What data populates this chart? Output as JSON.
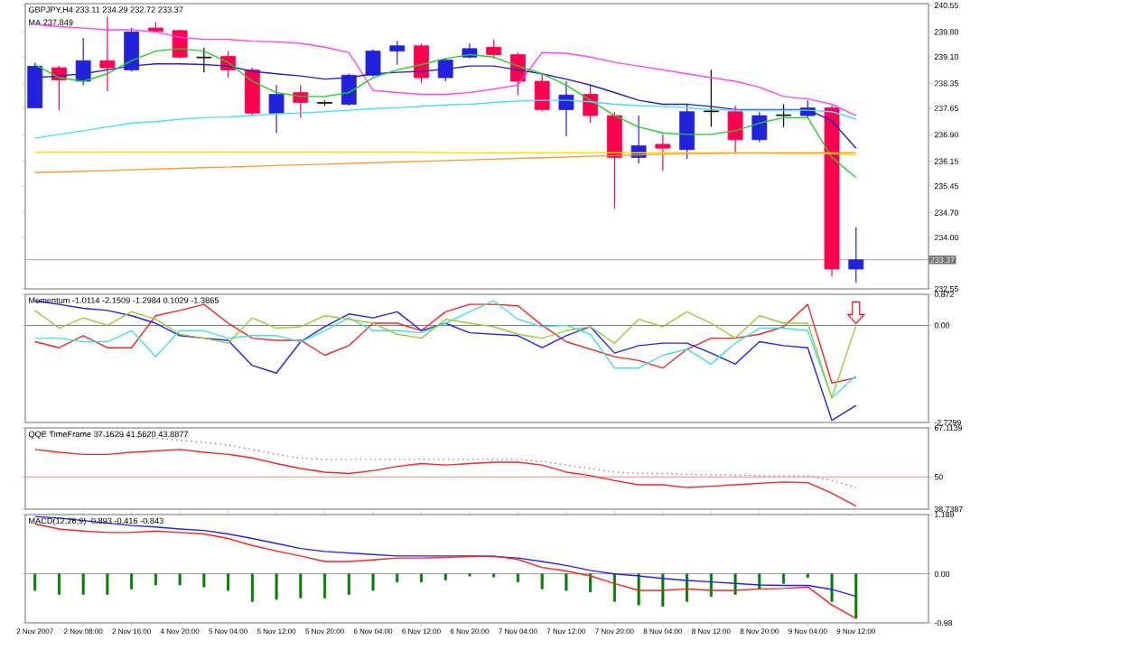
{
  "chart_data": [
    {
      "type": "candlestick",
      "title": "GBPJPY,H4  233.11 234.29 232.72 233.37",
      "subtitle": "MA 237.849",
      "tick_labels": "y",
      "categories": [
        null,
        null,
        null,
        null,
        null,
        null,
        null,
        null,
        null,
        null,
        null,
        null,
        null,
        null,
        null,
        null,
        null,
        null,
        null,
        null,
        null,
        null,
        null,
        null,
        null,
        null,
        null,
        null,
        null,
        null,
        null,
        null,
        null,
        null,
        null
      ],
      "ohlc": [
        [
          237.66,
          238.94,
          237.66,
          238.83
        ],
        [
          238.79,
          238.84,
          237.59,
          238.45
        ],
        [
          238.41,
          239.63,
          238.3,
          238.99
        ],
        [
          238.99,
          240.23,
          238.13,
          238.79
        ],
        [
          238.73,
          239.91,
          238.68,
          239.8
        ],
        [
          239.91,
          240.08,
          239.8,
          239.82
        ],
        [
          239.84,
          239.86,
          239.05,
          239.09
        ],
        [
          239.09,
          239.35,
          238.66,
          239.07
        ],
        [
          239.11,
          239.26,
          238.51,
          238.73
        ],
        [
          238.73,
          238.79,
          237.44,
          237.51
        ],
        [
          237.51,
          238.3,
          236.95,
          238.04
        ],
        [
          238.09,
          238.3,
          237.38,
          237.81
        ],
        [
          237.79,
          237.87,
          237.72,
          237.81
        ],
        [
          237.76,
          238.62,
          237.72,
          238.58
        ],
        [
          238.58,
          239.31,
          238.54,
          239.26
        ],
        [
          239.26,
          239.54,
          238.88,
          239.41
        ],
        [
          239.41,
          239.48,
          238.36,
          238.51
        ],
        [
          238.51,
          239.05,
          238.41,
          239.01
        ],
        [
          239.09,
          239.48,
          239.05,
          239.33
        ],
        [
          239.37,
          239.59,
          239.05,
          239.16
        ],
        [
          239.16,
          239.22,
          238.02,
          238.41
        ],
        [
          238.41,
          238.62,
          237.55,
          237.61
        ],
        [
          237.61,
          238.41,
          236.86,
          238.02
        ],
        [
          238.04,
          238.3,
          237.23,
          237.44
        ],
        [
          237.44,
          237.55,
          234.81,
          236.26
        ],
        [
          236.26,
          237.44,
          236.09,
          236.59
        ],
        [
          236.63,
          236.91,
          235.88,
          236.52
        ],
        [
          236.48,
          237.76,
          236.22,
          237.55
        ],
        [
          237.55,
          238.73,
          237.12,
          237.57
        ],
        [
          237.55,
          237.72,
          236.37,
          236.76
        ],
        [
          236.76,
          237.55,
          236.69,
          237.44
        ],
        [
          237.44,
          237.76,
          237.12,
          237.46
        ],
        [
          237.44,
          237.87,
          237.38,
          237.66
        ],
        [
          237.66,
          237.72,
          232.9,
          233.11
        ],
        [
          233.11,
          234.29,
          232.72,
          233.37
        ]
      ],
      "colors": [
        "#2222dd",
        "#ff0050",
        "#2222dd",
        "#ff0050",
        "#2222dd",
        "#ff0050",
        "#ff0050",
        "#000000",
        "#ff0050",
        "#ff0050",
        "#2222dd",
        "#ff0050",
        "#000000",
        "#2222dd",
        "#2222dd",
        "#2222dd",
        "#ff0050",
        "#2222dd",
        "#2222dd",
        "#ff0050",
        "#ff0050",
        "#ff0050",
        "#2222dd",
        "#ff0050",
        "#ff0050",
        "#2222dd",
        "#ff0050",
        "#2222dd",
        "#000000",
        "#ff0050",
        "#2222dd",
        "#000000",
        "#2222dd",
        "#ff0050",
        "#2222dd"
      ],
      "series": [
        {
          "type": "line",
          "color": "#ff40ff",
          "values": [
            240.01,
            239.95,
            239.91,
            239.86,
            239.86,
            239.8,
            239.65,
            239.59,
            239.59,
            239.54,
            239.52,
            239.48,
            239.37,
            239.22,
            238.15,
            238.09,
            238.04,
            238.04,
            238.09,
            238.19,
            238.3,
            239.22,
            239.2,
            239.09,
            238.94,
            238.84,
            238.73,
            238.62,
            238.51,
            238.41,
            238.24,
            237.98,
            237.91,
            237.76,
            237.44
          ]
        },
        {
          "type": "line",
          "color": "#2020d0",
          "values": [
            238.51,
            238.56,
            238.62,
            238.73,
            238.84,
            238.9,
            238.9,
            238.88,
            238.84,
            238.69,
            238.62,
            238.56,
            238.47,
            238.51,
            238.62,
            238.66,
            238.69,
            238.75,
            238.84,
            238.84,
            238.73,
            238.62,
            238.47,
            238.3,
            238.09,
            237.87,
            237.76,
            237.76,
            237.7,
            237.61,
            237.61,
            237.61,
            237.61,
            237.29,
            236.52
          ]
        },
        {
          "type": "line",
          "color": "#20d020",
          "values": [
            238.88,
            238.51,
            238.41,
            238.62,
            238.99,
            239.26,
            239.33,
            239.26,
            238.94,
            238.41,
            238.09,
            237.98,
            237.98,
            238.09,
            238.51,
            238.73,
            238.88,
            239.05,
            239.16,
            239.09,
            238.84,
            238.62,
            238.3,
            237.87,
            237.44,
            237.12,
            236.95,
            236.91,
            236.91,
            237.01,
            237.23,
            237.38,
            237.38,
            236.26,
            235.69
          ]
        },
        {
          "type": "line",
          "color": "#40e0ff",
          "values": [
            236.8,
            236.91,
            237.01,
            237.12,
            237.23,
            237.27,
            237.34,
            237.38,
            237.4,
            237.44,
            237.49,
            237.51,
            237.55,
            237.59,
            237.64,
            237.66,
            237.7,
            237.74,
            237.76,
            237.81,
            237.85,
            237.87,
            237.87,
            237.83,
            237.76,
            237.72,
            237.7,
            237.66,
            237.61,
            237.59,
            237.59,
            237.59,
            237.59,
            237.55,
            237.34
          ]
        },
        {
          "type": "line",
          "color": "#ffe000",
          "values": [
            236.41,
            236.41,
            236.41,
            236.41,
            236.41,
            236.41,
            236.41,
            236.41,
            236.41,
            236.41,
            236.41,
            236.41,
            236.41,
            236.41,
            236.41,
            236.41,
            236.41,
            236.39,
            236.39,
            236.39,
            236.39,
            236.39,
            236.39,
            236.39,
            236.39,
            236.39,
            236.39,
            236.39,
            236.39,
            236.39,
            236.39,
            236.37,
            236.37,
            236.37,
            236.32
          ]
        },
        {
          "type": "line",
          "color": "#ff9933",
          "values": [
            235.83,
            235.85,
            235.87,
            235.89,
            235.91,
            235.93,
            235.95,
            235.97,
            235.99,
            236.01,
            236.03,
            236.05,
            236.07,
            236.09,
            236.11,
            236.13,
            236.15,
            236.17,
            236.19,
            236.21,
            236.23,
            236.25,
            236.27,
            236.29,
            236.31,
            236.33,
            236.35,
            236.37,
            236.37,
            236.38,
            236.38,
            236.39,
            236.39,
            236.39,
            236.39
          ]
        }
      ],
      "ylim": [
        232.55,
        240.6
      ],
      "yticks": [
        240.55,
        {
          "value": 239.8,
          "label": "239.80"
        },
        {
          "value": 239.1,
          "label": "239.10"
        },
        238.35,
        237.65,
        {
          "value": 236.9,
          "label": "236.90"
        },
        236.15,
        235.45,
        {
          "value": 234.7,
          "label": "234.70"
        },
        {
          "value": 234,
          "label": "234.00"
        },
        232.55
      ],
      "ref_lines": [
        {
          "axis": "y",
          "value": 233.37,
          "label": "233.37",
          "color": "#a0a0a0"
        }
      ]
    },
    {
      "type": "line",
      "title": "Momentum -1.0114 -2.1509 -1.2984 0.1029 -1.3865",
      "tick_labels": "y",
      "categories": [
        null,
        null,
        null,
        null,
        null,
        null,
        null,
        null,
        null,
        null,
        null,
        null,
        null,
        null,
        null,
        null,
        null,
        null,
        null,
        null,
        null,
        null,
        null,
        null,
        null,
        null,
        null,
        null,
        null,
        null,
        null,
        null,
        null,
        null,
        null
      ],
      "series": [
        {
          "color": "#ff2020",
          "values": [
            -0.46,
            -0.63,
            -0.29,
            -0.63,
            -0.63,
            0.27,
            0.42,
            0.59,
            0.06,
            -0.36,
            -0.42,
            -0.42,
            -0.84,
            -0.57,
            0.06,
            0.06,
            -0.15,
            0.38,
            0.59,
            0.59,
            0.55,
            0,
            -0.46,
            -0.67,
            -0.88,
            -0.99,
            -1.2,
            -0.67,
            -0.36,
            -0.36,
            -0.25,
            -0.04,
            0.59,
            -1.62,
            -1.47
          ]
        },
        {
          "color": "#2020ff",
          "values": [
            0.69,
            0.59,
            0.48,
            0.42,
            0.27,
            0.06,
            -0.29,
            -0.36,
            -0.42,
            -1.13,
            -1.34,
            -0.46,
            -0.04,
            0.32,
            0.21,
            0.38,
            -0.15,
            0.06,
            -0.21,
            -0.25,
            -0.29,
            -0.63,
            -0.29,
            -0.04,
            -0.78,
            -0.57,
            -0.5,
            -0.5,
            -0.78,
            -1.09,
            -0.46,
            -0.57,
            -0.63,
            -2.67,
            -2.25
          ]
        },
        {
          "color": "#40e0e0",
          "values": [
            -0.36,
            -0.36,
            -0.46,
            -0.46,
            -0.15,
            -0.88,
            -0.15,
            -0.15,
            -0.36,
            -0.29,
            -0.29,
            -0.46,
            -0.15,
            0.21,
            -0.15,
            -0.15,
            -0.21,
            0.06,
            0.38,
            0.69,
            0.17,
            -0.04,
            0,
            -0.25,
            -1.2,
            -1.2,
            -0.84,
            -0.67,
            -1.09,
            -0.5,
            -0.08,
            -0.08,
            -0.15,
            -2.04,
            -1.41
          ]
        },
        {
          "color": "#99cc33",
          "values": [
            0.42,
            -0.08,
            0.21,
            0,
            0.38,
            0.17,
            -0.25,
            -0.36,
            -0.5,
            0.21,
            -0.08,
            -0.04,
            0.27,
            0.17,
            0.06,
            -0.25,
            -0.36,
            0.17,
            0.06,
            -0.04,
            -0.25,
            -0.36,
            -0.15,
            -0.04,
            -0.5,
            0.17,
            -0.04,
            0.38,
            0.06,
            -0.36,
            0.27,
            0.06,
            0.06,
            -2.04,
            0
          ]
        }
      ],
      "ylim": [
        -2.7299,
        0.872
      ],
      "yticks": [
        0.872,
        {
          "value": 0,
          "label": "0.00"
        },
        -2.7299
      ],
      "ref_lines": [
        {
          "axis": "y",
          "value": 0,
          "color": "#808080"
        }
      ]
    },
    {
      "type": "line",
      "title": "QQE TimeFrame 37.1629 41.5620 43.8877",
      "tick_labels": "y",
      "categories": [
        null,
        null,
        null,
        null,
        null,
        null,
        null,
        null,
        null,
        null,
        null,
        null,
        null,
        null,
        null,
        null,
        null,
        null,
        null,
        null,
        null,
        null,
        null,
        null,
        null,
        null,
        null,
        null,
        null,
        null,
        null,
        null,
        null,
        null,
        null
      ],
      "series": [
        {
          "color": "#ff2020",
          "values": [
            59.59,
            58.6,
            57.86,
            57.86,
            58.6,
            59.09,
            59.59,
            58.6,
            57.86,
            56.62,
            54.65,
            52.92,
            51.69,
            51.2,
            52.18,
            53.67,
            54.65,
            54.16,
            54.65,
            55.14,
            55.14,
            54.16,
            51.69,
            50.46,
            48.73,
            47.25,
            47.25,
            46.26,
            46.75,
            47.25,
            47.74,
            48.23,
            47.99,
            44.29,
            39.84
          ]
        },
        {
          "color": "#808080",
          "line_style": "dotted",
          "values": [
            65.26,
            65.26,
            65.02,
            64.52,
            64.03,
            63.54,
            62.8,
            62.06,
            61.07,
            59.59,
            57.86,
            56.62,
            56.13,
            56.13,
            56.13,
            56.13,
            56.13,
            56.13,
            56.13,
            56.13,
            56.13,
            55.39,
            54.16,
            52.92,
            51.69,
            51.2,
            51.2,
            50.95,
            50.7,
            50.7,
            50.46,
            50.46,
            50.46,
            48.73,
            46.26
          ]
        }
      ],
      "ylim": [
        38.7387,
        67.1139
      ],
      "yticks": [
        67.1139,
        50,
        38.7387
      ],
      "ref_lines": [
        {
          "axis": "y",
          "value": 50,
          "color": "#ff8080"
        }
      ]
    },
    {
      "type": "bar",
      "title": "MACD(12,26,9) -0.893 -0.416 -0.843",
      "categories": [
        "2 Nov 2007",
        null,
        "2 Nov 08:00",
        null,
        "2 Nov 16:00",
        null,
        "4 Nov 20:00",
        null,
        "5 Nov 04:00",
        null,
        "5 Nov 12:00",
        null,
        "5 Nov 20:00",
        null,
        "6 Nov 04:00",
        null,
        "6 Nov 12:00",
        null,
        "6 Nov 20:00",
        null,
        "7 Nov 04:00",
        null,
        "7 Nov 12:00",
        null,
        "7 Nov 20:00",
        null,
        "8 Nov 04:00",
        null,
        "8 Nov 12:00",
        null,
        "8 Nov 20:00",
        null,
        "9 Nov 04:00",
        null,
        "9 Nov 12:00"
      ],
      "series": [
        {
          "color": "#008000",
          "values": [
            -0.33,
            -0.41,
            -0.41,
            -0.41,
            -0.3,
            -0.22,
            -0.22,
            -0.26,
            -0.33,
            -0.55,
            -0.51,
            -0.48,
            -0.48,
            -0.41,
            -0.33,
            -0.16,
            -0.16,
            -0.12,
            -0.04,
            -0.06,
            -0.16,
            -0.3,
            -0.33,
            -0.36,
            -0.55,
            -0.62,
            -0.65,
            -0.55,
            -0.45,
            -0.41,
            -0.3,
            -0.19,
            -0.07,
            -0.55,
            -0.89
          ]
        },
        {
          "type": "line",
          "color": "#2020ff",
          "values": [
            1.15,
            1.12,
            1.07,
            1.02,
            0.97,
            0.94,
            0.9,
            0.87,
            0.8,
            0.71,
            0.61,
            0.51,
            0.45,
            0.42,
            0.39,
            0.36,
            0.36,
            0.36,
            0.36,
            0.35,
            0.32,
            0.25,
            0.17,
            0.07,
            0,
            -0.04,
            -0.09,
            -0.13,
            -0.16,
            -0.19,
            -0.22,
            -0.23,
            -0.23,
            -0.31,
            -0.45
          ]
        },
        {
          "type": "line",
          "color": "#ff2020",
          "values": [
            1.0,
            0.9,
            0.86,
            0.83,
            0.83,
            0.86,
            0.83,
            0.8,
            0.71,
            0.57,
            0.46,
            0.36,
            0.25,
            0.25,
            0.28,
            0.32,
            0.32,
            0.33,
            0.35,
            0.36,
            0.29,
            0.13,
            0.06,
            -0.04,
            -0.19,
            -0.33,
            -0.33,
            -0.3,
            -0.33,
            -0.33,
            -0.3,
            -0.29,
            -0.26,
            -0.62,
            -0.89
          ]
        }
      ],
      "ylim": [
        -0.98,
        1.189
      ],
      "yticks": [
        1.189,
        {
          "value": 0,
          "label": "0.00"
        },
        -0.98
      ],
      "ref_lines": [
        {
          "axis": "y",
          "value": 0,
          "color": "#808080"
        }
      ]
    }
  ]
}
